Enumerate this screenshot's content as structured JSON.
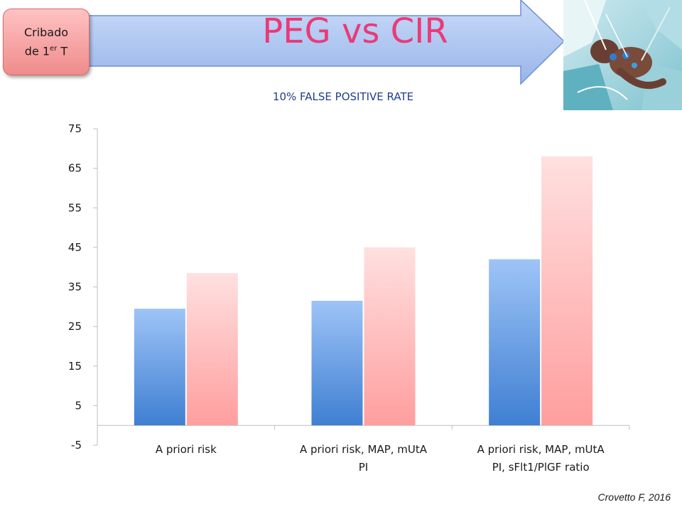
{
  "header": {
    "badge_text": "Cribado de 1",
    "badge_superscript": "er",
    "badge_suffix": "T",
    "title": "PEG vs CIR",
    "photo_icon": "premature-infant-photo"
  },
  "citation": "Crovetto F, 2016",
  "colors": {
    "series_1_top": "#9ec4f7",
    "series_1_bottom": "#3f7fd2",
    "series_2_top": "#ffe0e0",
    "series_2_bottom": "#ff9e9e",
    "title": "#ea3a78",
    "subtitle": "#1f3f8c",
    "arrow": "#a9c4f2"
  },
  "chart_data": {
    "type": "bar",
    "title": "10% FALSE POSITIVE RATE",
    "xlabel": "",
    "ylabel": "",
    "ylim": [
      -5,
      75
    ],
    "yticks": [
      -5,
      5,
      15,
      25,
      35,
      45,
      55,
      65,
      75
    ],
    "grid": false,
    "legend": "none",
    "categories": [
      [
        "A priori risk"
      ],
      [
        "A priori risk, MAP, mUtA",
        "PI"
      ],
      [
        "A priori risk, MAP, mUtA",
        "PI, sFlt1/PlGF ratio"
      ]
    ],
    "series": [
      {
        "values": [
          29.5,
          31.5,
          42
        ]
      },
      {
        "values": [
          38.5,
          45,
          68
        ]
      }
    ]
  }
}
